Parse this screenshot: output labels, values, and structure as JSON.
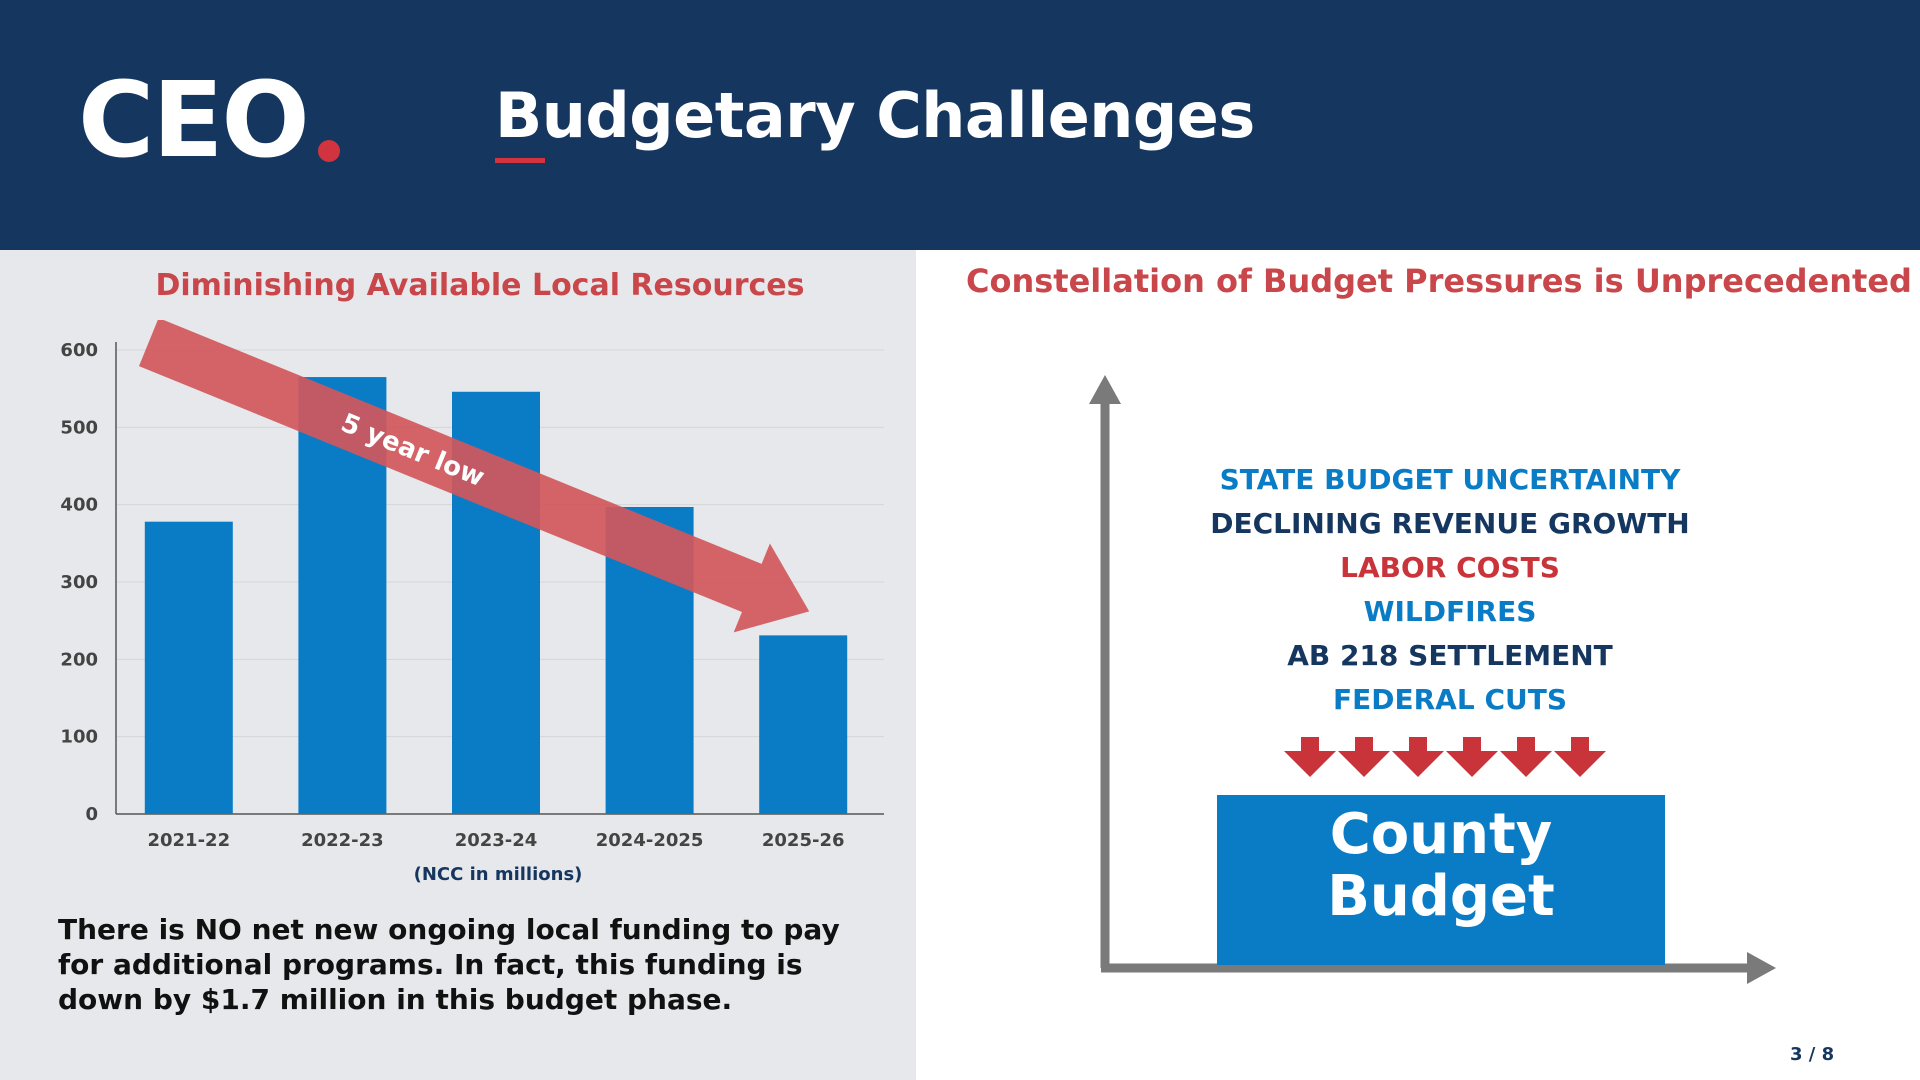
{
  "header": {
    "logo_text": "CEO",
    "title": "Budgetary Challenges",
    "background_color": "#15365e",
    "accent_color": "#d1343e"
  },
  "chart_data": {
    "type": "bar",
    "title": "Diminishing Available Local Resources",
    "xlabel": "(NCC in millions)",
    "ylabel": "",
    "categories": [
      "2021-22",
      "2022-23",
      "2023-24",
      "2024-2025",
      "2025-26"
    ],
    "values": [
      378,
      565,
      546,
      397,
      231
    ],
    "ylim": [
      0,
      600
    ],
    "yticks": [
      0,
      100,
      200,
      300,
      400,
      500,
      600
    ],
    "grid": true,
    "bar_color": "#0a7cc6",
    "annotation": {
      "text": "5 year low",
      "color": "#d1575b",
      "from_category": "2021-22",
      "to_category": "2025-26",
      "from_value": 600,
      "to_value": 231
    }
  },
  "note": "There is NO net new ongoing local funding to pay for additional programs. In fact, this funding is down by $1.7 million in this budget phase.",
  "pressures": {
    "title": "Constellation of Budget Pressures is Unprecedented",
    "items": [
      {
        "label": "STATE BUDGET UNCERTAINTY",
        "color": "#0a7cc6"
      },
      {
        "label": "DECLINING REVENUE GROWTH",
        "color": "#15365e"
      },
      {
        "label": "LABOR COSTS",
        "color": "#c9343b"
      },
      {
        "label": "WILDFIRES",
        "color": "#0a7cc6"
      },
      {
        "label": "AB 218 SETTLEMENT",
        "color": "#15365e"
      },
      {
        "label": "FEDERAL CUTS",
        "color": "#0a7cc6"
      }
    ],
    "arrow_count": 6,
    "arrow_color": "#c9343b",
    "axis_color": "#7a7a7a",
    "budget_box": {
      "line1": "County",
      "line2": "Budget",
      "color": "#0a7cc6"
    }
  },
  "footer": {
    "page_number": "3 / 8"
  }
}
